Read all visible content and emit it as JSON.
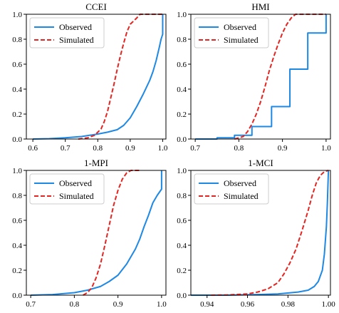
{
  "chart_data": [
    {
      "type": "line",
      "title": "CCEI",
      "xlim": [
        0.58,
        1.01
      ],
      "ylim": [
        0.0,
        1.0
      ],
      "xticks": [
        "0.6",
        "0.7",
        "0.8",
        "0.9",
        "1.0"
      ],
      "xtick_values": [
        0.6,
        0.7,
        0.8,
        0.9,
        1.0
      ],
      "yticks": [
        "0.0",
        "0.2",
        "0.4",
        "0.6",
        "0.8",
        "1.0"
      ],
      "ytick_values": [
        0.0,
        0.2,
        0.4,
        0.6,
        0.8,
        1.0
      ],
      "legend_position": "upper-left",
      "series": [
        {
          "name": "Observed",
          "color": "#1e88e5",
          "dash": "solid",
          "points": [
            [
              0.6,
              0.0
            ],
            [
              0.65,
              0.003
            ],
            [
              0.7,
              0.01
            ],
            [
              0.75,
              0.02
            ],
            [
              0.8,
              0.04
            ],
            [
              0.83,
              0.055
            ],
            [
              0.86,
              0.075
            ],
            [
              0.88,
              0.11
            ],
            [
              0.9,
              0.17
            ],
            [
              0.92,
              0.26
            ],
            [
              0.94,
              0.36
            ],
            [
              0.96,
              0.47
            ],
            [
              0.97,
              0.54
            ],
            [
              0.98,
              0.63
            ],
            [
              0.99,
              0.74
            ],
            [
              0.995,
              0.8
            ],
            [
              1.0,
              0.84
            ],
            [
              1.0,
              1.0
            ]
          ]
        },
        {
          "name": "Simulated",
          "color": "#e52521",
          "dash": "dash",
          "points": [
            [
              0.74,
              0.0
            ],
            [
              0.77,
              0.01
            ],
            [
              0.79,
              0.03
            ],
            [
              0.81,
              0.08
            ],
            [
              0.82,
              0.14
            ],
            [
              0.83,
              0.22
            ],
            [
              0.84,
              0.33
            ],
            [
              0.85,
              0.44
            ],
            [
              0.86,
              0.56
            ],
            [
              0.87,
              0.67
            ],
            [
              0.88,
              0.77
            ],
            [
              0.89,
              0.86
            ],
            [
              0.9,
              0.92
            ],
            [
              0.92,
              0.97
            ],
            [
              0.93,
              1.0
            ],
            [
              1.0,
              1.0
            ]
          ]
        }
      ]
    },
    {
      "type": "line",
      "title": "HMI",
      "xlim": [
        0.69,
        1.01
      ],
      "ylim": [
        0.0,
        1.0
      ],
      "xticks": [
        "0.7",
        "0.8",
        "0.9",
        "1.0"
      ],
      "xtick_values": [
        0.7,
        0.8,
        0.9,
        1.0
      ],
      "yticks": [
        "0.0",
        "0.2",
        "0.4",
        "0.6",
        "0.8",
        "1.0"
      ],
      "ytick_values": [
        0.0,
        0.2,
        0.4,
        0.6,
        0.8,
        1.0
      ],
      "legend_position": "upper-left",
      "series": [
        {
          "name": "Observed",
          "color": "#1e88e5",
          "dash": "solid",
          "points": [
            [
              0.7,
              0.0
            ],
            [
              0.75,
              0.0
            ],
            [
              0.75,
              0.01
            ],
            [
              0.79,
              0.01
            ],
            [
              0.79,
              0.03
            ],
            [
              0.83,
              0.03
            ],
            [
              0.83,
              0.1
            ],
            [
              0.875,
              0.1
            ],
            [
              0.875,
              0.26
            ],
            [
              0.917,
              0.26
            ],
            [
              0.917,
              0.56
            ],
            [
              0.958,
              0.56
            ],
            [
              0.958,
              0.85
            ],
            [
              1.0,
              0.85
            ],
            [
              1.0,
              1.0
            ]
          ]
        },
        {
          "name": "Simulated",
          "color": "#e52521",
          "dash": "dash",
          "points": [
            [
              0.79,
              0.0
            ],
            [
              0.81,
              0.02
            ],
            [
              0.82,
              0.06
            ],
            [
              0.83,
              0.12
            ],
            [
              0.84,
              0.2
            ],
            [
              0.85,
              0.3
            ],
            [
              0.86,
              0.42
            ],
            [
              0.87,
              0.55
            ],
            [
              0.88,
              0.66
            ],
            [
              0.89,
              0.76
            ],
            [
              0.9,
              0.85
            ],
            [
              0.91,
              0.92
            ],
            [
              0.92,
              0.97
            ],
            [
              0.93,
              1.0
            ],
            [
              1.0,
              1.0
            ]
          ]
        }
      ]
    },
    {
      "type": "line",
      "title": "1-MPI",
      "xlim": [
        0.69,
        1.01
      ],
      "ylim": [
        0.0,
        1.0
      ],
      "xticks": [
        "0.7",
        "0.8",
        "0.9",
        "1.0"
      ],
      "xtick_values": [
        0.7,
        0.8,
        0.9,
        1.0
      ],
      "yticks": [
        "0.0",
        "0.2",
        "0.4",
        "0.6",
        "0.8",
        "1.0"
      ],
      "ytick_values": [
        0.0,
        0.2,
        0.4,
        0.6,
        0.8,
        1.0
      ],
      "legend_position": "upper-left",
      "series": [
        {
          "name": "Observed",
          "color": "#1e88e5",
          "dash": "solid",
          "points": [
            [
              0.7,
              0.0
            ],
            [
              0.75,
              0.005
            ],
            [
              0.8,
              0.02
            ],
            [
              0.83,
              0.04
            ],
            [
              0.86,
              0.07
            ],
            [
              0.88,
              0.11
            ],
            [
              0.9,
              0.16
            ],
            [
              0.92,
              0.25
            ],
            [
              0.94,
              0.37
            ],
            [
              0.95,
              0.45
            ],
            [
              0.96,
              0.55
            ],
            [
              0.97,
              0.64
            ],
            [
              0.98,
              0.74
            ],
            [
              0.99,
              0.8
            ],
            [
              1.0,
              0.85
            ],
            [
              1.0,
              1.0
            ]
          ]
        },
        {
          "name": "Simulated",
          "color": "#e52521",
          "dash": "dash",
          "points": [
            [
              0.82,
              0.0
            ],
            [
              0.83,
              0.02
            ],
            [
              0.84,
              0.06
            ],
            [
              0.85,
              0.14
            ],
            [
              0.86,
              0.25
            ],
            [
              0.87,
              0.4
            ],
            [
              0.88,
              0.56
            ],
            [
              0.89,
              0.72
            ],
            [
              0.9,
              0.84
            ],
            [
              0.91,
              0.93
            ],
            [
              0.92,
              0.98
            ],
            [
              0.93,
              1.0
            ],
            [
              0.95,
              1.0
            ]
          ]
        }
      ]
    },
    {
      "type": "line",
      "title": "1-MCI",
      "xlim": [
        0.932,
        1.001
      ],
      "ylim": [
        0.0,
        1.0
      ],
      "xticks": [
        "0.94",
        "0.96",
        "0.98",
        "1.00"
      ],
      "xtick_values": [
        0.94,
        0.96,
        0.98,
        1.0
      ],
      "yticks": [
        "0.0",
        "0.2",
        "0.4",
        "0.6",
        "0.8",
        "1.0"
      ],
      "ytick_values": [
        0.0,
        0.2,
        0.4,
        0.6,
        0.8,
        1.0
      ],
      "legend_position": "upper-left",
      "series": [
        {
          "name": "Observed",
          "color": "#1e88e5",
          "dash": "solid",
          "points": [
            [
              0.932,
              0.0
            ],
            [
              0.95,
              0.0
            ],
            [
              0.965,
              0.005
            ],
            [
              0.975,
              0.01
            ],
            [
              0.985,
              0.025
            ],
            [
              0.99,
              0.04
            ],
            [
              0.993,
              0.07
            ],
            [
              0.995,
              0.11
            ],
            [
              0.997,
              0.2
            ],
            [
              0.998,
              0.33
            ],
            [
              0.999,
              0.55
            ],
            [
              0.9995,
              0.75
            ],
            [
              1.0,
              1.0
            ]
          ]
        },
        {
          "name": "Simulated",
          "color": "#e52521",
          "dash": "dash",
          "points": [
            [
              0.942,
              0.0
            ],
            [
              0.95,
              0.002
            ],
            [
              0.96,
              0.01
            ],
            [
              0.965,
              0.025
            ],
            [
              0.97,
              0.05
            ],
            [
              0.975,
              0.1
            ],
            [
              0.978,
              0.17
            ],
            [
              0.981,
              0.26
            ],
            [
              0.984,
              0.37
            ],
            [
              0.987,
              0.52
            ],
            [
              0.99,
              0.68
            ],
            [
              0.992,
              0.8
            ],
            [
              0.994,
              0.9
            ],
            [
              0.996,
              0.96
            ],
            [
              0.998,
              0.99
            ],
            [
              1.0,
              1.0
            ]
          ]
        }
      ]
    }
  ]
}
